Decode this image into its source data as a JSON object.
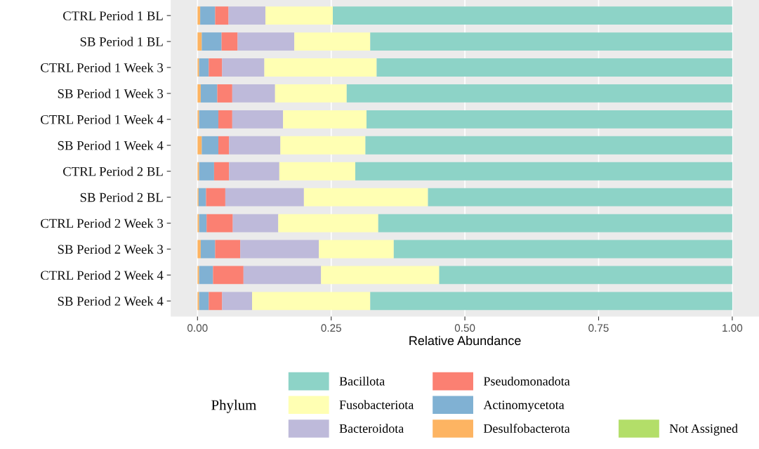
{
  "chart_data": {
    "type": "bar",
    "orientation": "horizontal",
    "stacked": true,
    "categories": [
      "CTRL Period 1 BL",
      "SB Period 1 BL",
      "CTRL Period 1 Week 3",
      "SB Period 1 Week 3",
      "CTRL Period 1 Week 4",
      "SB Period 1 Week 4",
      "CTRL Period 2 BL",
      "SB Period 2 BL",
      "CTRL Period 2 Week 3",
      "SB Period 2 Week 3",
      "CTRL Period 2 Week 4",
      "SB Period 2 Week 4"
    ],
    "series": [
      {
        "name": "Not Assigned",
        "color": "#b3de69",
        "values": [
          0,
          0,
          0,
          0,
          0,
          0,
          0,
          0,
          0,
          0,
          0,
          0
        ]
      },
      {
        "name": "Desulfobacterota",
        "color": "#fdb462",
        "values": [
          0.005,
          0.008,
          0.003,
          0.006,
          0.003,
          0.008,
          0.003,
          0.002,
          0.003,
          0.006,
          0.003,
          0.003
        ]
      },
      {
        "name": "Actinomycetota",
        "color": "#80b1d3",
        "values": [
          0.028,
          0.037,
          0.018,
          0.031,
          0.036,
          0.031,
          0.028,
          0.014,
          0.014,
          0.027,
          0.026,
          0.018
        ]
      },
      {
        "name": "Pseudomonadota",
        "color": "#fb8072",
        "values": [
          0.025,
          0.03,
          0.025,
          0.028,
          0.026,
          0.02,
          0.028,
          0.036,
          0.049,
          0.047,
          0.057,
          0.025
        ]
      },
      {
        "name": "Bacteroidota",
        "color": "#bebada",
        "values": [
          0.069,
          0.106,
          0.079,
          0.08,
          0.095,
          0.096,
          0.094,
          0.147,
          0.085,
          0.147,
          0.145,
          0.056
        ]
      },
      {
        "name": "Fusobacteriota",
        "color": "#ffffb3",
        "values": [
          0.126,
          0.142,
          0.21,
          0.134,
          0.156,
          0.159,
          0.142,
          0.232,
          0.187,
          0.14,
          0.221,
          0.221
        ]
      },
      {
        "name": "Bacillota",
        "color": "#8dd3c7",
        "values": [
          0.747,
          0.677,
          0.665,
          0.721,
          0.684,
          0.686,
          0.705,
          0.569,
          0.662,
          0.633,
          0.548,
          0.677
        ]
      }
    ],
    "xlabel": "Relative Abundance",
    "legend_title": "Phylum",
    "legend": "bottom",
    "grid": "x",
    "xlim": [
      -0.05,
      1.05
    ],
    "xticks": [
      {
        "value": 0,
        "label": "0.00"
      },
      {
        "value": 0.25,
        "label": "0.25"
      },
      {
        "value": 0.5,
        "label": "0.50"
      },
      {
        "value": 0.75,
        "label": "0.75"
      },
      {
        "value": 1,
        "label": "1.00"
      }
    ]
  }
}
